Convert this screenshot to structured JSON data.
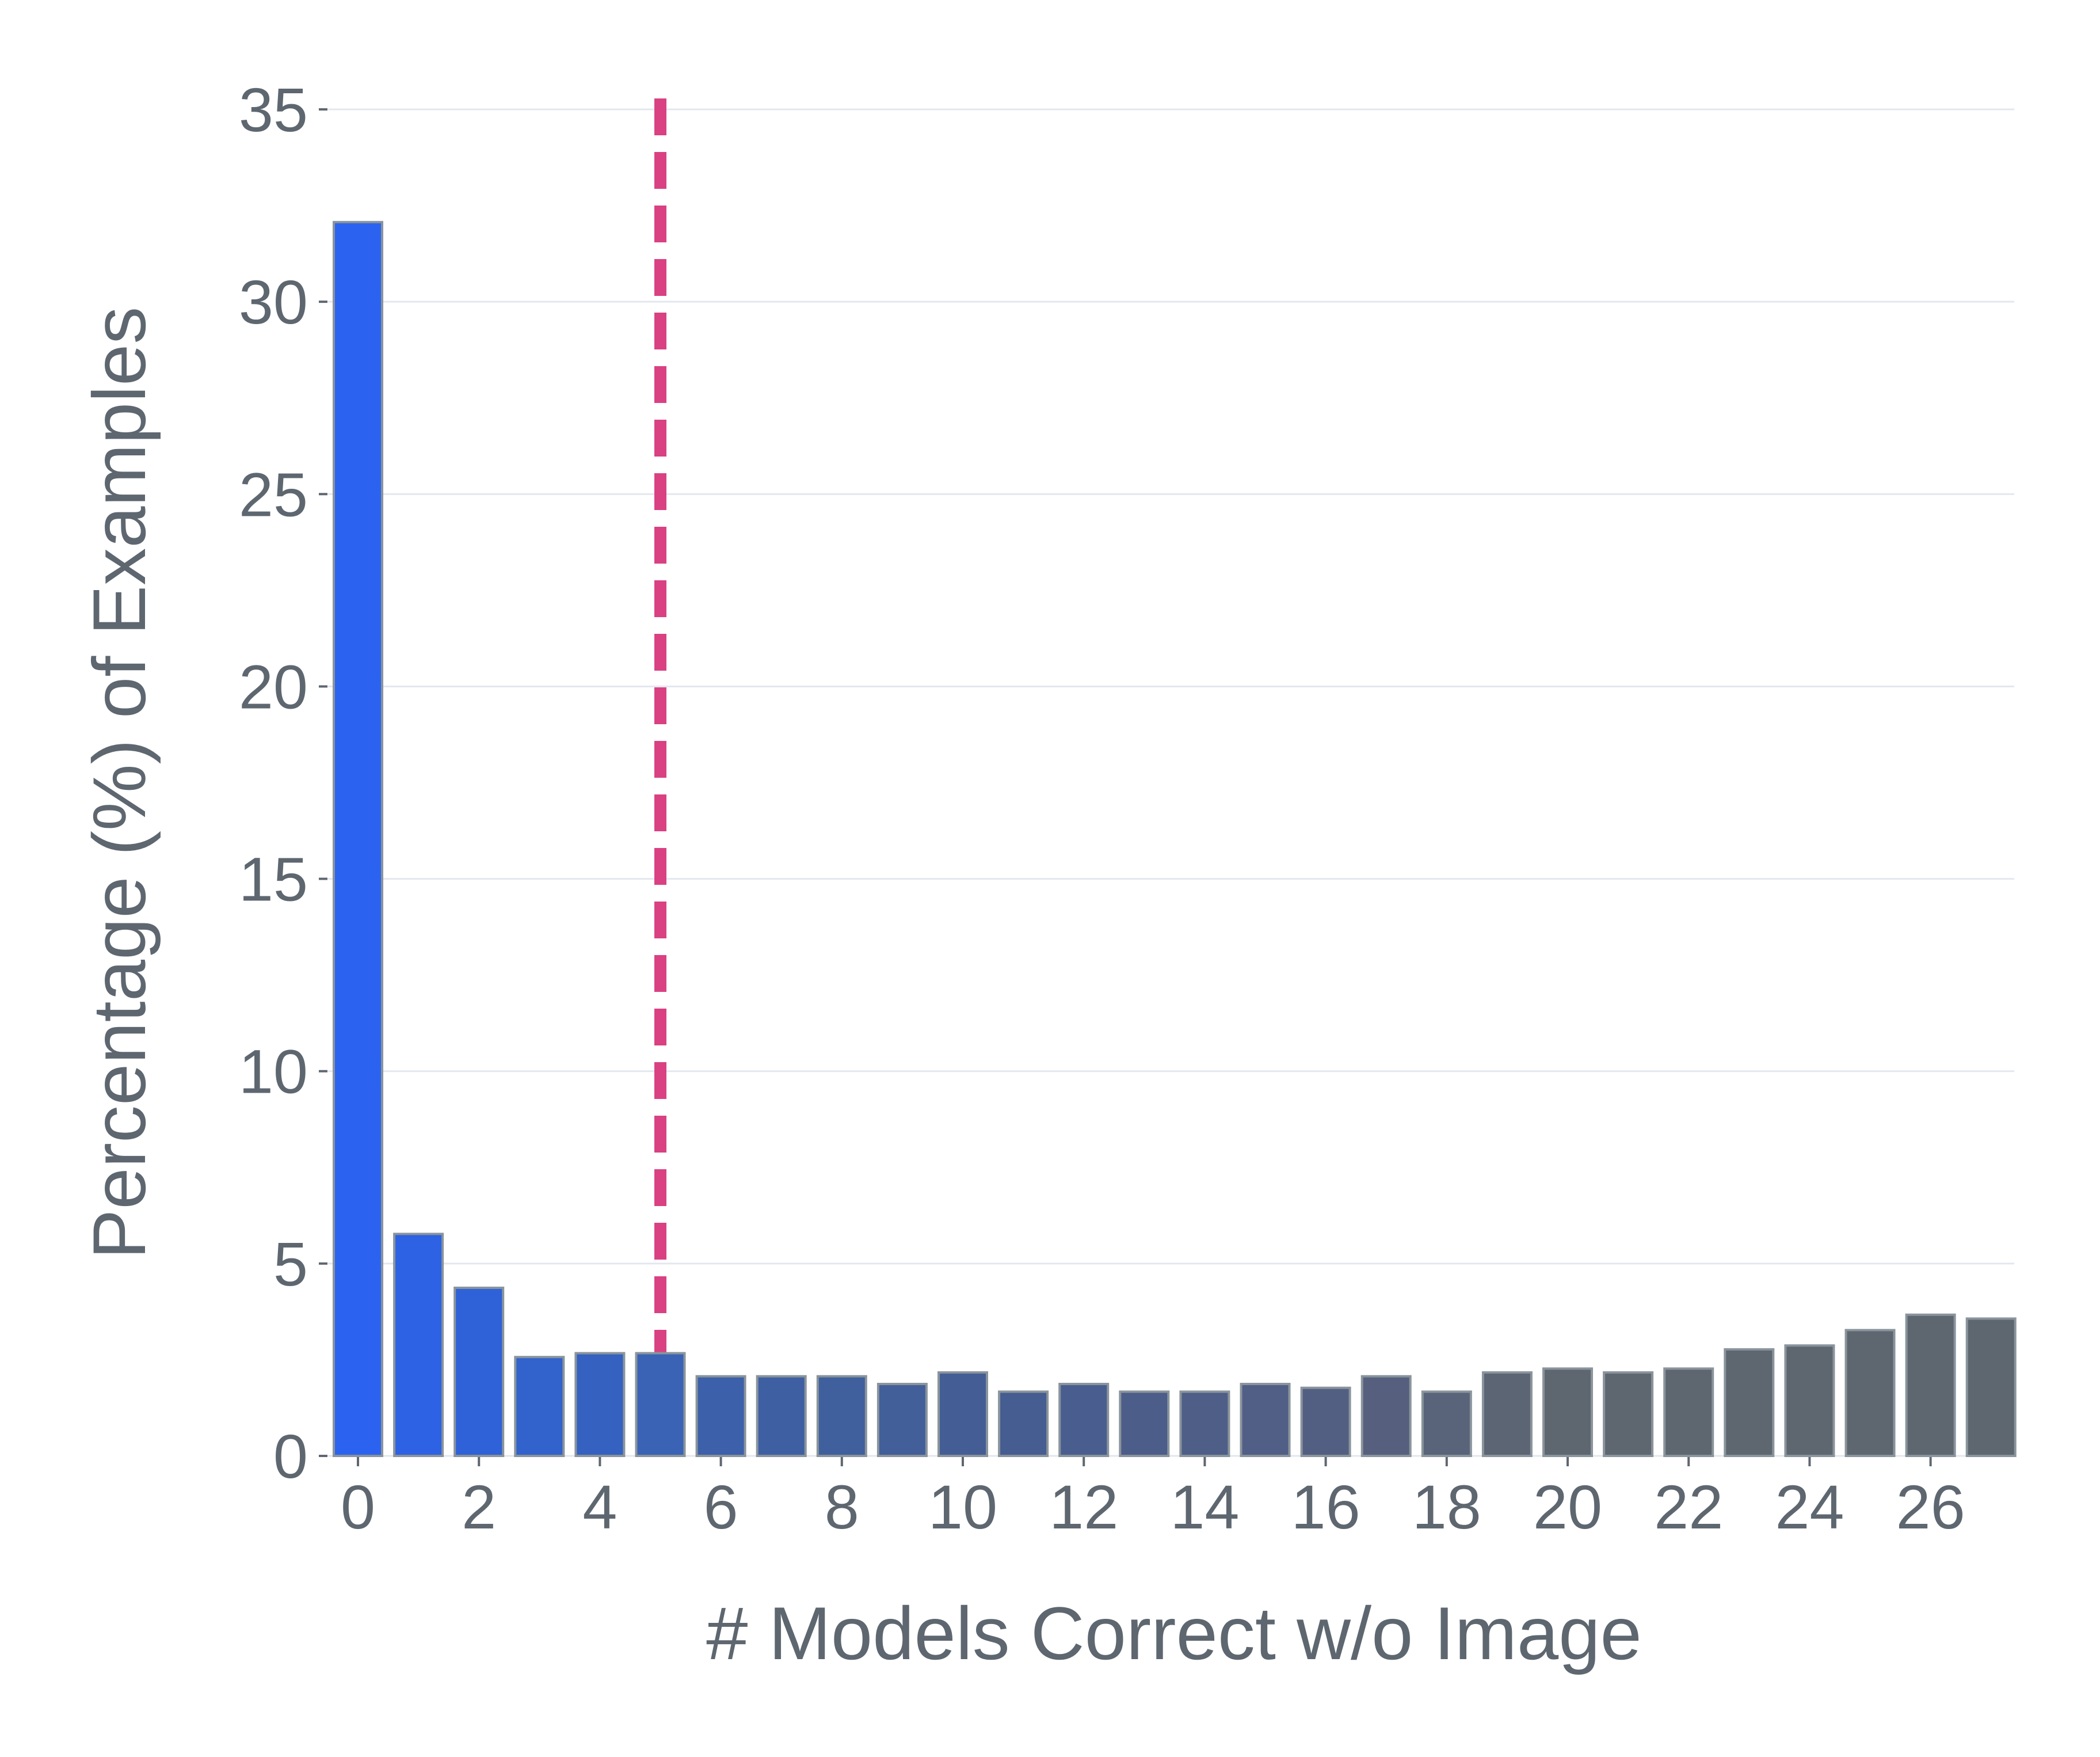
{
  "chart_data": {
    "type": "bar",
    "title": "",
    "xlabel": "# Models Correct w/o Image",
    "ylabel": "Percentage (%) of Examples",
    "ylim": [
      0,
      35
    ],
    "yticks": [
      0,
      5,
      10,
      15,
      20,
      25,
      30,
      35
    ],
    "xticks": [
      0,
      2,
      4,
      6,
      8,
      10,
      12,
      14,
      16,
      18,
      20,
      22,
      24,
      26
    ],
    "grid": true,
    "legend": null,
    "categories": [
      0,
      1,
      2,
      3,
      4,
      5,
      6,
      7,
      8,
      9,
      10,
      11,
      12,
      13,
      14,
      15,
      16,
      17,
      18,
      19,
      20,
      21,
      22,
      23,
      24,
      25,
      26,
      27
    ],
    "values": [
      32.1,
      5.8,
      4.4,
      2.6,
      2.7,
      2.7,
      2.1,
      2.1,
      2.1,
      1.9,
      2.2,
      1.7,
      1.9,
      1.7,
      1.7,
      1.9,
      1.8,
      2.1,
      1.7,
      2.2,
      2.3,
      2.2,
      2.3,
      2.8,
      2.9,
      3.3,
      3.7,
      3.6
    ],
    "bar_colors": [
      "#2B63F0",
      "#2C62E3",
      "#2F62D8",
      "#3262CC",
      "#3562C1",
      "#3A63B5",
      "#3C60A9",
      "#3E60A3",
      "#3F609D",
      "#425F99",
      "#445E95",
      "#455D91",
      "#495E8F",
      "#4D5D89",
      "#4F5E87",
      "#515E85",
      "#535F82",
      "#56607E",
      "#59637A",
      "#5C6574",
      "#5E6770",
      "#5E6770",
      "#5E6770",
      "#5E6770",
      "#5E6770",
      "#5E6770",
      "#5E6770",
      "#5E6770"
    ],
    "bar_edge_color": "#8A949C",
    "annotations": [
      {
        "type": "vline",
        "x": 5,
        "style": "dashed",
        "color": "#D94183"
      }
    ]
  },
  "colors": {
    "text": "#5E6770",
    "grid": "#E3E7EE",
    "threshold_line": "#D94183"
  }
}
